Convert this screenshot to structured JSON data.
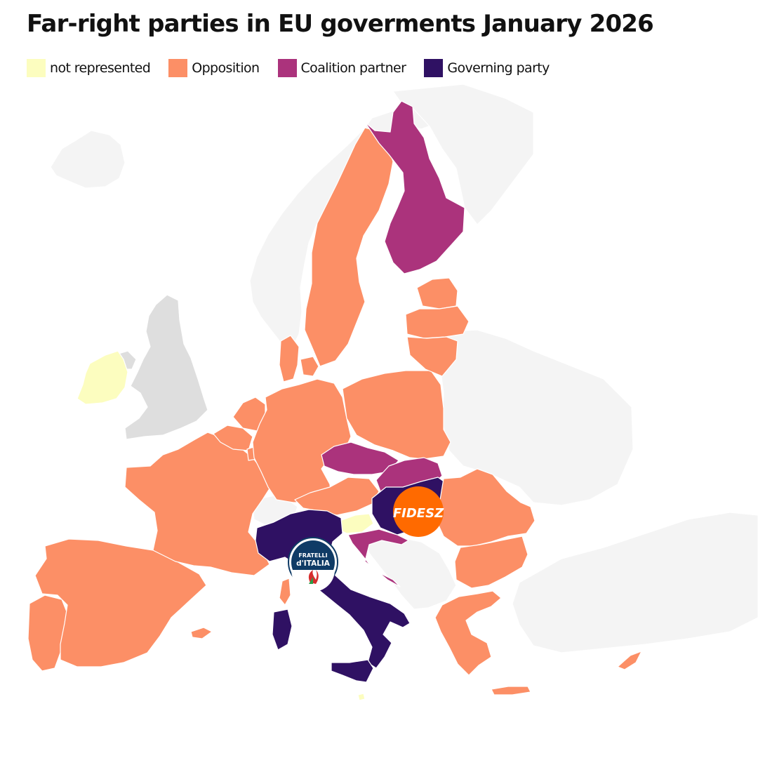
{
  "title": "Far-right parties in EU goverments January 2026",
  "legend": [
    {
      "label": "not represented",
      "color": "#fcfdbf"
    },
    {
      "label": "Opposition",
      "color": "#fc8f66"
    },
    {
      "label": "Coalition partner",
      "color": "#ab337c"
    },
    {
      "label": "Governing party",
      "color": "#2f1163"
    }
  ],
  "non_eu_color": "#f4f4f4",
  "uk_color": "#dedede",
  "logos": {
    "fidesz": {
      "text": "FIDESZ",
      "color": "#ff6a00"
    },
    "fratelli": {
      "line1": "FRATELLI",
      "line2": "d'ITALIA",
      "color": "#0f3b66"
    }
  },
  "countries": [
    {
      "name": "Ireland",
      "status": "not represented"
    },
    {
      "name": "Slovenia",
      "status": "not represented"
    },
    {
      "name": "Malta",
      "status": "not represented"
    },
    {
      "name": "Portugal",
      "status": "Opposition"
    },
    {
      "name": "Spain",
      "status": "Opposition"
    },
    {
      "name": "France",
      "status": "Opposition"
    },
    {
      "name": "Belgium",
      "status": "Opposition"
    },
    {
      "name": "Netherlands",
      "status": "Opposition"
    },
    {
      "name": "Luxembourg",
      "status": "Opposition"
    },
    {
      "name": "Germany",
      "status": "Opposition"
    },
    {
      "name": "Denmark",
      "status": "Opposition"
    },
    {
      "name": "Sweden",
      "status": "Opposition"
    },
    {
      "name": "Poland",
      "status": "Opposition"
    },
    {
      "name": "Austria",
      "status": "Opposition"
    },
    {
      "name": "Estonia",
      "status": "Opposition"
    },
    {
      "name": "Latvia",
      "status": "Opposition"
    },
    {
      "name": "Lithuania",
      "status": "Opposition"
    },
    {
      "name": "Romania",
      "status": "Opposition"
    },
    {
      "name": "Bulgaria",
      "status": "Opposition"
    },
    {
      "name": "Greece",
      "status": "Opposition"
    },
    {
      "name": "Cyprus",
      "status": "Opposition"
    },
    {
      "name": "Finland",
      "status": "Coalition partner"
    },
    {
      "name": "Czechia",
      "status": "Coalition partner"
    },
    {
      "name": "Slovakia",
      "status": "Coalition partner"
    },
    {
      "name": "Croatia",
      "status": "Coalition partner"
    },
    {
      "name": "Hungary",
      "status": "Governing party"
    },
    {
      "name": "Italy",
      "status": "Governing party"
    }
  ]
}
